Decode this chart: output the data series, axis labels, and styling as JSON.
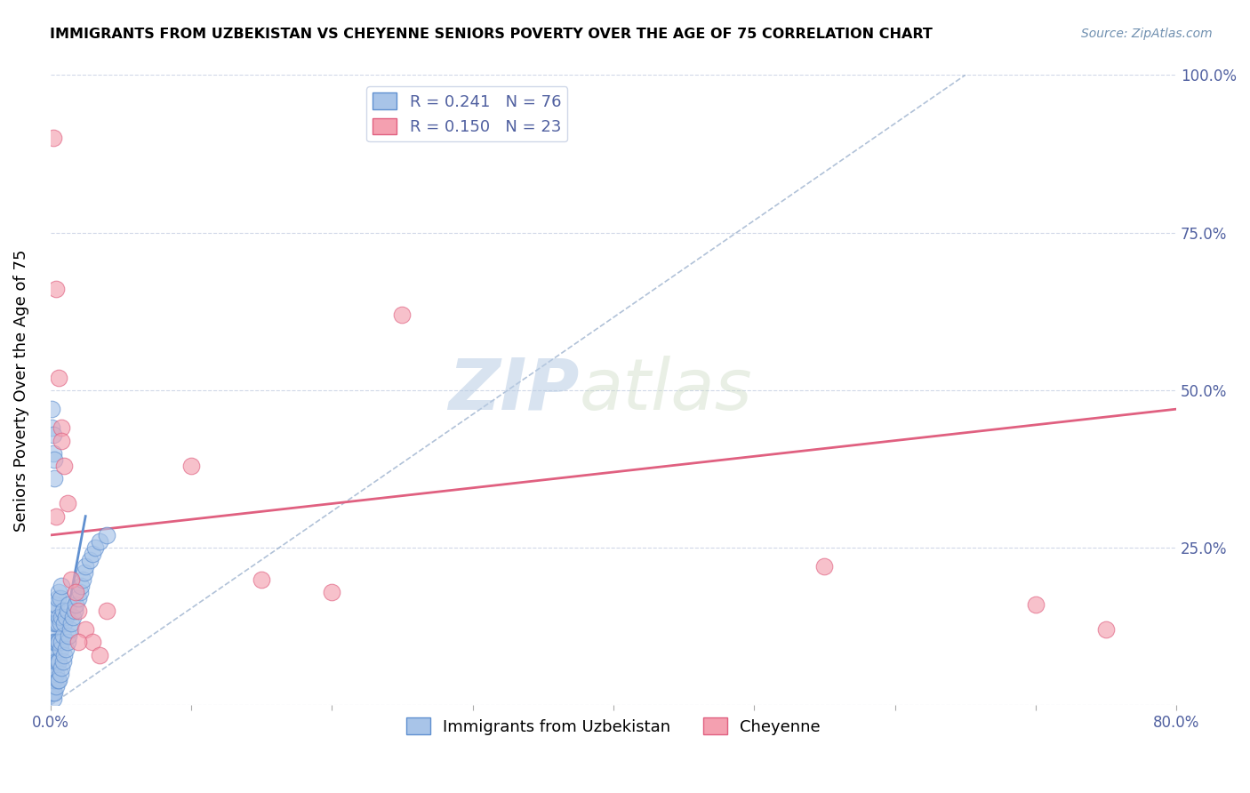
{
  "title": "IMMIGRANTS FROM UZBEKISTAN VS CHEYENNE SENIORS POVERTY OVER THE AGE OF 75 CORRELATION CHART",
  "source": "Source: ZipAtlas.com",
  "ylabel": "Seniors Poverty Over the Age of 75",
  "xlim": [
    0.0,
    0.8
  ],
  "ylim": [
    0.0,
    1.0
  ],
  "yticks": [
    0.0,
    0.25,
    0.5,
    0.75,
    1.0
  ],
  "ytick_labels": [
    "",
    "25.0%",
    "50.0%",
    "75.0%",
    "100.0%"
  ],
  "xticks": [
    0.0,
    0.1,
    0.2,
    0.3,
    0.4,
    0.5,
    0.6,
    0.7,
    0.8
  ],
  "xtick_labels": [
    "0.0%",
    "",
    "",
    "",
    "",
    "",
    "",
    "",
    "80.0%"
  ],
  "legend1_R": "0.241",
  "legend1_N": "76",
  "legend2_R": "0.150",
  "legend2_N": "23",
  "color_blue": "#a8c4e8",
  "color_pink": "#f4a0b0",
  "color_blue_line": "#6090d0",
  "color_pink_line": "#e06080",
  "color_dashed": "#90a8c8",
  "watermark_zip": "ZIP",
  "watermark_atlas": "atlas",
  "blue_scatter_x": [
    0.001,
    0.001,
    0.001,
    0.001,
    0.002,
    0.002,
    0.002,
    0.002,
    0.002,
    0.002,
    0.002,
    0.002,
    0.003,
    0.003,
    0.003,
    0.003,
    0.003,
    0.003,
    0.003,
    0.004,
    0.004,
    0.004,
    0.004,
    0.004,
    0.004,
    0.005,
    0.005,
    0.005,
    0.005,
    0.005,
    0.006,
    0.006,
    0.006,
    0.006,
    0.006,
    0.007,
    0.007,
    0.007,
    0.007,
    0.008,
    0.008,
    0.008,
    0.008,
    0.009,
    0.009,
    0.009,
    0.01,
    0.01,
    0.011,
    0.011,
    0.012,
    0.012,
    0.013,
    0.013,
    0.014,
    0.015,
    0.016,
    0.017,
    0.018,
    0.02,
    0.021,
    0.022,
    0.023,
    0.024,
    0.025,
    0.028,
    0.03,
    0.032,
    0.035,
    0.04,
    0.001,
    0.001,
    0.002,
    0.002,
    0.003,
    0.003
  ],
  "blue_scatter_y": [
    0.02,
    0.03,
    0.05,
    0.07,
    0.01,
    0.02,
    0.04,
    0.06,
    0.08,
    0.1,
    0.12,
    0.15,
    0.02,
    0.04,
    0.06,
    0.08,
    0.1,
    0.13,
    0.16,
    0.03,
    0.05,
    0.07,
    0.1,
    0.13,
    0.16,
    0.04,
    0.07,
    0.1,
    0.13,
    0.17,
    0.04,
    0.07,
    0.1,
    0.14,
    0.18,
    0.05,
    0.09,
    0.13,
    0.17,
    0.06,
    0.1,
    0.14,
    0.19,
    0.07,
    0.11,
    0.15,
    0.08,
    0.13,
    0.09,
    0.14,
    0.1,
    0.15,
    0.11,
    0.16,
    0.12,
    0.13,
    0.14,
    0.15,
    0.16,
    0.17,
    0.18,
    0.19,
    0.2,
    0.21,
    0.22,
    0.23,
    0.24,
    0.25,
    0.26,
    0.27,
    0.44,
    0.47,
    0.4,
    0.43,
    0.36,
    0.39
  ],
  "pink_scatter_x": [
    0.002,
    0.004,
    0.006,
    0.008,
    0.01,
    0.012,
    0.015,
    0.018,
    0.02,
    0.025,
    0.03,
    0.035,
    0.04,
    0.1,
    0.15,
    0.2,
    0.25,
    0.55,
    0.7,
    0.75,
    0.004,
    0.008,
    0.02
  ],
  "pink_scatter_y": [
    0.9,
    0.66,
    0.52,
    0.44,
    0.38,
    0.32,
    0.2,
    0.18,
    0.15,
    0.12,
    0.1,
    0.08,
    0.15,
    0.38,
    0.2,
    0.18,
    0.62,
    0.22,
    0.16,
    0.12,
    0.3,
    0.42,
    0.1
  ],
  "blue_line_x": [
    0.0,
    0.025
  ],
  "blue_line_y": [
    0.0,
    0.3
  ],
  "pink_line_x": [
    0.0,
    0.8
  ],
  "pink_line_y": [
    0.27,
    0.47
  ],
  "dashed_line_x": [
    0.0,
    0.65
  ],
  "dashed_line_y": [
    0.0,
    1.0
  ]
}
